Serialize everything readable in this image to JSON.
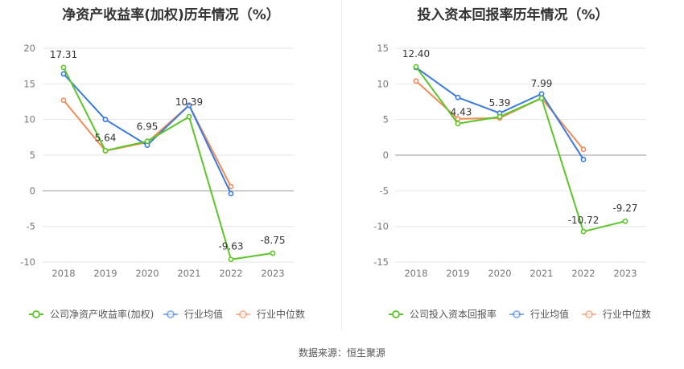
{
  "source_text": "数据来源：恒生聚源",
  "chart_data": [
    {
      "type": "line",
      "title": "净资产收益率(加权)历年情况（%）",
      "categories": [
        "2018",
        "2019",
        "2020",
        "2021",
        "2022",
        "2023"
      ],
      "ylim": [
        -10,
        20
      ],
      "yticks": [
        20,
        15,
        10,
        5,
        0,
        -5,
        -10
      ],
      "grid": true,
      "legend_position": "bottom",
      "series": [
        {
          "name": "公司净资产收益率(加权)",
          "color": "#5cc527",
          "values": [
            17.31,
            5.64,
            6.95,
            10.39,
            -9.63,
            -8.75
          ],
          "labels": [
            "17.31",
            "5.64",
            "6.95",
            "10.39",
            "-9.63",
            "-8.75"
          ]
        },
        {
          "name": "行业均值",
          "color": "#3a7ae0",
          "values": [
            16.4,
            10.0,
            6.4,
            12.0,
            -0.4,
            null
          ]
        },
        {
          "name": "行业中位数",
          "color": "#f28c56",
          "values": [
            12.7,
            5.6,
            6.8,
            12.0,
            0.6,
            null
          ]
        }
      ]
    },
    {
      "type": "line",
      "title": "投入资本回报率历年情况（%）",
      "categories": [
        "2018",
        "2019",
        "2020",
        "2021",
        "2022",
        "2023"
      ],
      "ylim": [
        -15,
        15
      ],
      "yticks": [
        15,
        10,
        5,
        0,
        -5,
        -10,
        -15
      ],
      "grid": true,
      "legend_position": "bottom",
      "series": [
        {
          "name": "公司投入资本回报率",
          "color": "#5cc527",
          "values": [
            12.4,
            4.43,
            5.39,
            7.99,
            -10.72,
            -9.27
          ],
          "labels": [
            "12.40",
            "4.43",
            "5.39",
            "7.99",
            "-10.72",
            "-9.27"
          ]
        },
        {
          "name": "行业均值",
          "color": "#3a7ae0",
          "values": [
            12.3,
            8.1,
            5.9,
            8.6,
            -0.6,
            null
          ]
        },
        {
          "name": "行业中位数",
          "color": "#f28c56",
          "values": [
            10.4,
            5.1,
            5.2,
            8.0,
            0.8,
            null
          ]
        }
      ]
    }
  ]
}
